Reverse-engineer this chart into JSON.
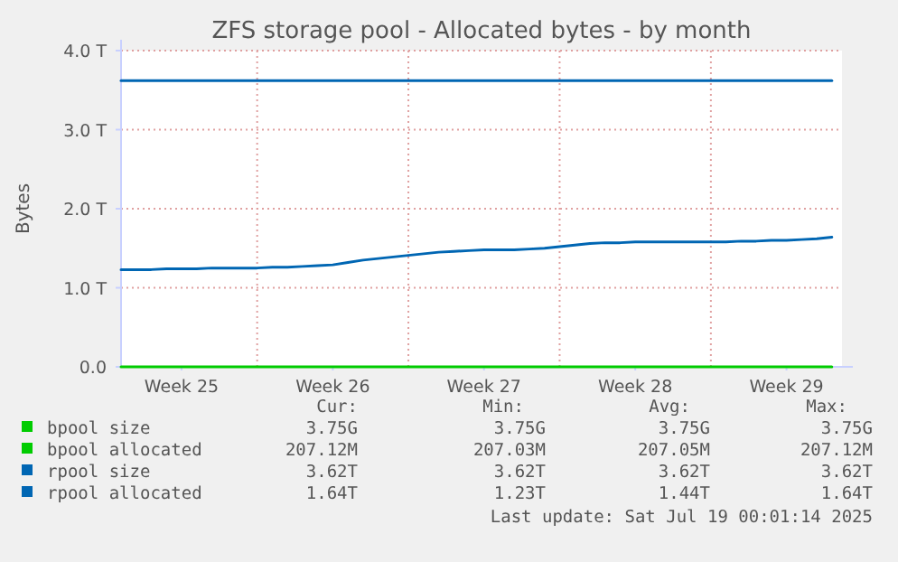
{
  "chart_data": {
    "type": "line",
    "title": "ZFS storage pool - Allocated bytes - by month",
    "ylabel": "Bytes",
    "categories": [
      null,
      null,
      null,
      null,
      "Week 25",
      null,
      null,
      null,
      null,
      null,
      null,
      null,
      null,
      null,
      "Week 26",
      null,
      null,
      null,
      null,
      null,
      null,
      null,
      null,
      null,
      "Week 27",
      null,
      null,
      null,
      null,
      null,
      null,
      null,
      null,
      null,
      "Week 28",
      null,
      null,
      null,
      null,
      null,
      null,
      null,
      null,
      null,
      "Week 29",
      null,
      null,
      null
    ],
    "ylim": [
      0,
      4
    ],
    "yticks": [
      {
        "value": 0,
        "label": "0.0"
      },
      {
        "value": 1,
        "label": "1.0 T"
      },
      {
        "value": 2,
        "label": "2.0 T"
      },
      {
        "value": 3,
        "label": "3.0 T"
      },
      {
        "value": 4,
        "label": "4.0 T"
      }
    ],
    "grid": true,
    "legend": "bottom",
    "line_style": "solid",
    "series": [
      {
        "name": "bpool size",
        "color": "#00cc00",
        "values": [
          null,
          null,
          null,
          null,
          null,
          null,
          null,
          null,
          null,
          null,
          null,
          null,
          null,
          null,
          null,
          null,
          null,
          null,
          null,
          null,
          null,
          null,
          null,
          null,
          null,
          null,
          null,
          null,
          null,
          null,
          null,
          null,
          null,
          null,
          null,
          null,
          null,
          null,
          null,
          null,
          null,
          null,
          null,
          null,
          null,
          null,
          null,
          null
        ]
      },
      {
        "name": "bpool allocated",
        "color": "#00cc00",
        "values": [
          0,
          0,
          0,
          0,
          0,
          0,
          0,
          0,
          0,
          0,
          0,
          0,
          0,
          0,
          0,
          0,
          0,
          0,
          0,
          0,
          0,
          0,
          0,
          0,
          0,
          0,
          0,
          0,
          0,
          0,
          0,
          0,
          0,
          0,
          0,
          0,
          0,
          0,
          0,
          0,
          0,
          0,
          0,
          0,
          0,
          0,
          0,
          0
        ]
      },
      {
        "name": "rpool size",
        "color": "#0066b3",
        "values": [
          3.62,
          3.62,
          3.62,
          3.62,
          3.62,
          3.62,
          3.62,
          3.62,
          3.62,
          3.62,
          3.62,
          3.62,
          3.62,
          3.62,
          3.62,
          3.62,
          3.62,
          3.62,
          3.62,
          3.62,
          3.62,
          3.62,
          3.62,
          3.62,
          3.62,
          3.62,
          3.62,
          3.62,
          3.62,
          3.62,
          3.62,
          3.62,
          3.62,
          3.62,
          3.62,
          3.62,
          3.62,
          3.62,
          3.62,
          3.62,
          3.62,
          3.62,
          3.62,
          3.62,
          3.62,
          3.62,
          3.62,
          3.62
        ]
      },
      {
        "name": "rpool allocated",
        "color": "#0066b3",
        "values": [
          1.23,
          1.23,
          1.23,
          1.24,
          1.24,
          1.24,
          1.25,
          1.25,
          1.25,
          1.25,
          1.26,
          1.26,
          1.27,
          1.28,
          1.29,
          1.32,
          1.35,
          1.37,
          1.39,
          1.41,
          1.43,
          1.45,
          1.46,
          1.47,
          1.48,
          1.48,
          1.48,
          1.49,
          1.5,
          1.52,
          1.54,
          1.56,
          1.57,
          1.57,
          1.58,
          1.58,
          1.58,
          1.58,
          1.58,
          1.58,
          1.58,
          1.59,
          1.59,
          1.6,
          1.6,
          1.61,
          1.62,
          1.64
        ]
      }
    ],
    "annotations": [
      "Cur:",
      "Min:",
      "Avg:",
      "Max:",
      "3.75G",
      "3.75G",
      "3.75G",
      "3.75G",
      "207.12M",
      "207.03M",
      "207.05M",
      "207.12M",
      "3.62T",
      "3.62T",
      "3.62T",
      "3.62T",
      "1.64T",
      "1.23T",
      "1.44T",
      "1.64T",
      "Last update: Sat Jul 19 00:01:14 2025"
    ]
  }
}
